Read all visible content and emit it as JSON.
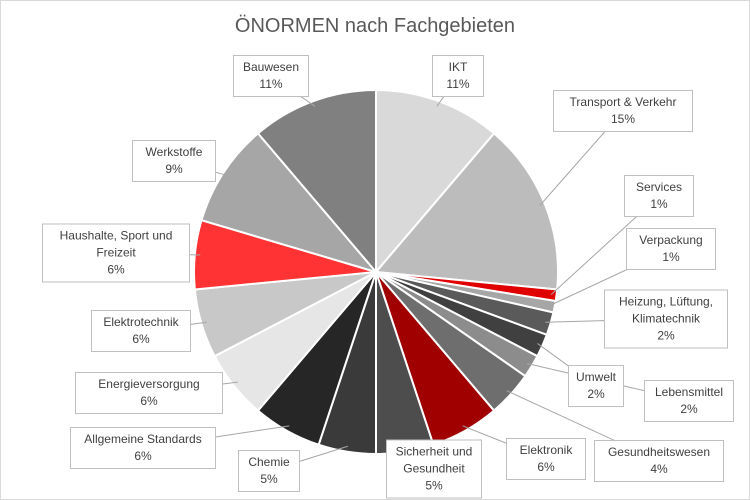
{
  "chart_data": {
    "type": "pie",
    "title": "ÖNORMEN nach Fachgebieten",
    "categories": [
      "IKT",
      "Transport & Verkehr",
      "Services",
      "Verpackung",
      "Heizung, Lüftung, Klimatechnik",
      "Umwelt",
      "Lebensmittel",
      "Gesundheitswesen",
      "Elektronik",
      "Sicherheit und Gesundheit",
      "Chemie",
      "Allgemeine Standards",
      "Energieversorgung",
      "Elektrotechnik",
      "Haushalte, Sport und Freizeit",
      "Werkstoffe",
      "Bauwesen"
    ],
    "values": [
      11,
      15,
      1,
      1,
      2,
      2,
      2,
      4,
      6,
      5,
      5,
      6,
      6,
      6,
      6,
      9,
      11
    ],
    "value_labels": [
      "11%",
      "15%",
      "1%",
      "1%",
      "2%",
      "2%",
      "2%",
      "4%",
      "6%",
      "5%",
      "5%",
      "6%",
      "6%",
      "6%",
      "6%",
      "9%",
      "11%"
    ],
    "colors": [
      "#d9d9d9",
      "#bcbcbc",
      "#e00000",
      "#a6a6a6",
      "#5a5a5a",
      "#404040",
      "#8c8c8c",
      "#6e6e6e",
      "#a00000",
      "#4d4d4d",
      "#3a3a3a",
      "#262626",
      "#e6e6e6",
      "#c8c8c8",
      "#ff3333",
      "#a6a6a6",
      "#808080"
    ]
  }
}
